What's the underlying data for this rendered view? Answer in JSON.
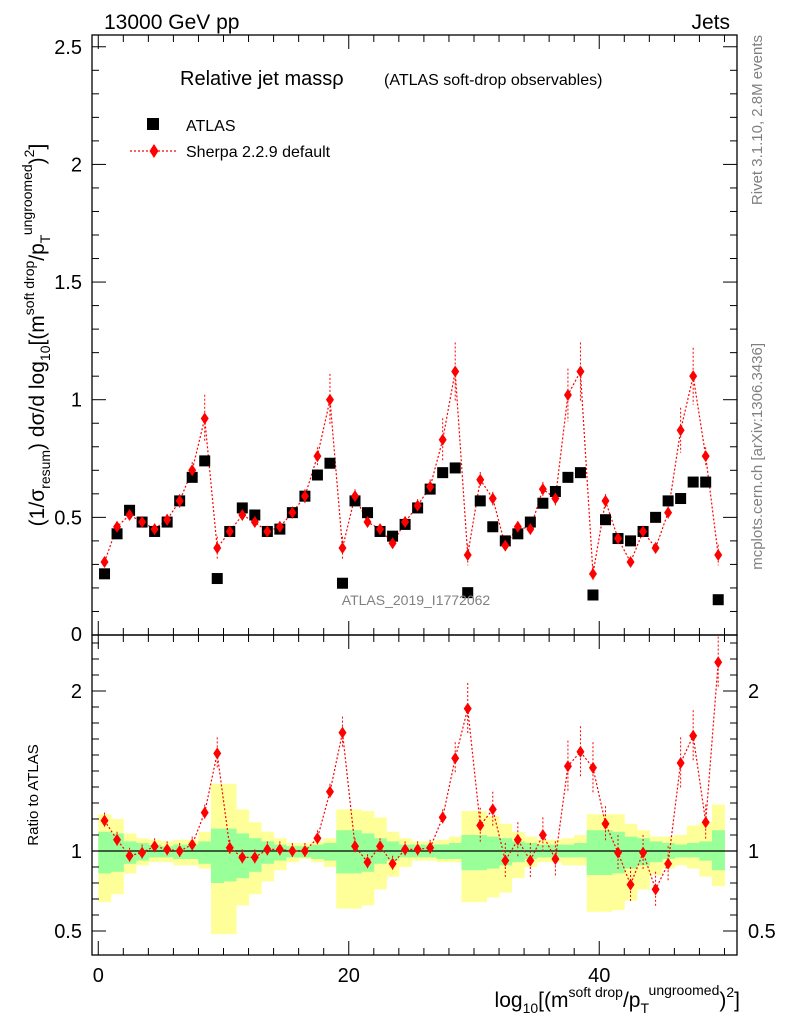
{
  "header": {
    "left_label": "13000 GeV pp",
    "right_label": "Jets"
  },
  "side_text": {
    "rivet": "Rivet 3.1.10,  2.8M events",
    "mcplots": "mcplots.cern.ch [arXiv:1306.3436]"
  },
  "watermark": "ATLAS_2019_I1772062",
  "chart_data": [
    {
      "type": "scatter",
      "title": "Relative jet massρ",
      "subtitle": "(ATLAS soft-drop observables)",
      "ylabel": "(1/σ_resum) dσ/d log10[(m^soft drop/pT^ungroomed)^2]",
      "xlim": [
        -0.5,
        51
      ],
      "ylim": [
        0,
        2.55
      ],
      "yticks": [
        "0.5",
        "1",
        "1.5",
        "2",
        "2.5"
      ],
      "x": [
        0.5,
        1.5,
        2.5,
        3.5,
        4.5,
        5.5,
        6.5,
        7.5,
        8.5,
        9.5,
        10.5,
        11.5,
        12.5,
        13.5,
        14.5,
        15.5,
        16.5,
        17.5,
        18.5,
        19.5,
        20.5,
        21.5,
        22.5,
        23.5,
        24.5,
        25.5,
        26.5,
        27.5,
        28.5,
        29.5,
        30.5,
        31.5,
        32.5,
        33.5,
        34.5,
        35.5,
        36.5,
        37.5,
        38.5,
        39.5,
        40.5,
        41.5,
        42.5,
        43.5,
        44.5,
        45.5,
        46.5,
        47.5,
        48.5,
        49.5
      ],
      "series": [
        {
          "name": "ATLAS",
          "color": "#000000",
          "marker": "square",
          "values": [
            0.26,
            0.43,
            0.53,
            0.48,
            0.44,
            0.48,
            0.57,
            0.67,
            0.74,
            0.24,
            0.44,
            0.54,
            0.51,
            0.44,
            0.45,
            0.52,
            0.59,
            0.68,
            0.73,
            0.22,
            0.57,
            0.52,
            0.44,
            0.42,
            0.47,
            0.54,
            0.62,
            0.69,
            0.71,
            0.18,
            0.57,
            0.46,
            0.4,
            0.43,
            0.48,
            0.56,
            0.61,
            0.67,
            0.69,
            0.17,
            0.49,
            0.41,
            0.4,
            0.44,
            0.5,
            0.57,
            0.58,
            0.65,
            0.65,
            0.15
          ]
        },
        {
          "name": "Sherpa 2.2.9 default",
          "color": "#ff0000",
          "marker": "diamond",
          "values": [
            0.31,
            0.46,
            0.51,
            0.48,
            0.45,
            0.49,
            0.57,
            0.7,
            0.92,
            0.37,
            0.44,
            0.51,
            0.48,
            0.44,
            0.46,
            0.52,
            0.59,
            0.76,
            1.0,
            0.37,
            0.59,
            0.48,
            0.45,
            0.39,
            0.48,
            0.55,
            0.63,
            0.83,
            1.12,
            0.34,
            0.66,
            0.58,
            0.38,
            0.46,
            0.45,
            0.62,
            0.58,
            1.02,
            1.12,
            0.26,
            0.57,
            0.41,
            0.31,
            0.44,
            0.37,
            0.52,
            0.87,
            1.1,
            0.76,
            0.34
          ]
        }
      ]
    },
    {
      "type": "scatter",
      "ylabel": "Ratio to ATLAS",
      "xlabel": "log10[(m^soft drop/pT^ungroomed)^2]",
      "xlim": [
        -0.5,
        51
      ],
      "ylim": [
        0.35,
        2.35
      ],
      "xticks": [
        "0",
        "20",
        "40"
      ],
      "yticks": [
        "0.5",
        "1",
        "2"
      ],
      "x": [
        0.5,
        1.5,
        2.5,
        3.5,
        4.5,
        5.5,
        6.5,
        7.5,
        8.5,
        9.5,
        10.5,
        11.5,
        12.5,
        13.5,
        14.5,
        15.5,
        16.5,
        17.5,
        18.5,
        19.5,
        20.5,
        21.5,
        22.5,
        23.5,
        24.5,
        25.5,
        26.5,
        27.5,
        28.5,
        29.5,
        30.5,
        31.5,
        32.5,
        33.5,
        34.5,
        35.5,
        36.5,
        37.5,
        38.5,
        39.5,
        40.5,
        41.5,
        42.5,
        43.5,
        44.5,
        45.5,
        46.5,
        47.5,
        48.5,
        49.5
      ],
      "series": [
        {
          "name": "Sherpa 2.2.9 default",
          "color": "#ff0000",
          "values": [
            1.19,
            1.07,
            0.97,
            0.99,
            1.03,
            1.01,
            1.0,
            1.04,
            1.24,
            1.61,
            1.02,
            0.96,
            0.96,
            1.01,
            1.01,
            1.0,
            1.0,
            1.08,
            1.37,
            1.74,
            1.03,
            0.93,
            1.03,
            0.92,
            1.01,
            1.01,
            1.02,
            1.21,
            1.58,
            1.89,
            1.16,
            1.26,
            0.94,
            1.07,
            0.94,
            1.1,
            0.95,
            1.53,
            1.62,
            1.52,
            1.17,
            0.99,
            0.79,
            0.99,
            0.76,
            0.92,
            1.55,
            1.72,
            1.18,
            2.18
          ]
        }
      ],
      "uncertainty_bands": [
        {
          "name": "stat",
          "color": "#99ff99",
          "lo": [
            0.86,
            0.87,
            0.92,
            0.94,
            0.96,
            0.96,
            0.95,
            0.95,
            0.92,
            0.8,
            0.81,
            0.83,
            0.87,
            0.92,
            0.94,
            0.96,
            0.96,
            0.95,
            0.94,
            0.86,
            0.86,
            0.87,
            0.92,
            0.94,
            0.96,
            0.96,
            0.96,
            0.95,
            0.95,
            0.88,
            0.88,
            0.89,
            0.91,
            0.93,
            0.95,
            0.96,
            0.96,
            0.96,
            0.96,
            0.85,
            0.85,
            0.86,
            0.89,
            0.91,
            0.93,
            0.95,
            0.96,
            0.96,
            0.94,
            0.88
          ],
          "hi": [
            1.12,
            1.11,
            1.06,
            1.05,
            1.04,
            1.03,
            1.04,
            1.04,
            1.06,
            1.14,
            1.14,
            1.11,
            1.08,
            1.06,
            1.04,
            1.03,
            1.03,
            1.04,
            1.05,
            1.13,
            1.13,
            1.11,
            1.08,
            1.06,
            1.04,
            1.04,
            1.04,
            1.04,
            1.05,
            1.1,
            1.1,
            1.09,
            1.08,
            1.06,
            1.05,
            1.04,
            1.04,
            1.04,
            1.05,
            1.13,
            1.13,
            1.12,
            1.09,
            1.08,
            1.06,
            1.05,
            1.04,
            1.05,
            1.06,
            1.13
          ]
        },
        {
          "name": "total",
          "color": "#ffff99",
          "lo": [
            0.68,
            0.73,
            0.86,
            0.91,
            0.93,
            0.93,
            0.91,
            0.91,
            0.89,
            0.48,
            0.48,
            0.66,
            0.73,
            0.81,
            0.88,
            0.93,
            0.95,
            0.93,
            0.9,
            0.64,
            0.64,
            0.66,
            0.76,
            0.84,
            0.9,
            0.94,
            0.94,
            0.93,
            0.93,
            0.68,
            0.68,
            0.71,
            0.74,
            0.83,
            0.9,
            0.93,
            0.93,
            0.91,
            0.91,
            0.62,
            0.62,
            0.63,
            0.69,
            0.76,
            0.85,
            0.89,
            0.91,
            0.89,
            0.84,
            0.78
          ],
          "hi": [
            1.23,
            1.2,
            1.11,
            1.08,
            1.07,
            1.06,
            1.07,
            1.07,
            1.12,
            1.42,
            1.42,
            1.26,
            1.18,
            1.12,
            1.08,
            1.05,
            1.05,
            1.06,
            1.08,
            1.26,
            1.26,
            1.25,
            1.21,
            1.12,
            1.08,
            1.06,
            1.06,
            1.07,
            1.09,
            1.25,
            1.25,
            1.22,
            1.17,
            1.12,
            1.09,
            1.07,
            1.07,
            1.08,
            1.1,
            1.23,
            1.23,
            1.23,
            1.17,
            1.13,
            1.09,
            1.09,
            1.1,
            1.16,
            1.18,
            1.29
          ]
        }
      ]
    }
  ]
}
